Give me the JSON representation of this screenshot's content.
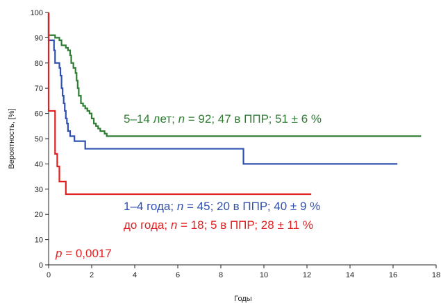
{
  "chart_data": {
    "type": "line",
    "xlabel": "Годы",
    "ylabel": "Вероятность, [%]",
    "xlim": [
      0,
      18
    ],
    "ylim": [
      0,
      100
    ],
    "x_ticks": [
      0,
      2,
      4,
      6,
      8,
      10,
      12,
      14,
      16,
      18
    ],
    "y_ticks": [
      0,
      10,
      20,
      30,
      40,
      50,
      60,
      70,
      80,
      90,
      100
    ],
    "step": true,
    "grid": false,
    "series": [
      {
        "name": "5–14 лет",
        "color": "#2e7d32",
        "points": [
          [
            0,
            91
          ],
          [
            0.3,
            90
          ],
          [
            0.5,
            89
          ],
          [
            0.6,
            87
          ],
          [
            0.8,
            86
          ],
          [
            0.9,
            85
          ],
          [
            1.0,
            83
          ],
          [
            1.05,
            80
          ],
          [
            1.15,
            78
          ],
          [
            1.25,
            76
          ],
          [
            1.3,
            73
          ],
          [
            1.35,
            70
          ],
          [
            1.4,
            67
          ],
          [
            1.5,
            64
          ],
          [
            1.6,
            63
          ],
          [
            1.7,
            62
          ],
          [
            1.8,
            61
          ],
          [
            1.9,
            60
          ],
          [
            2.0,
            58
          ],
          [
            2.1,
            56
          ],
          [
            2.2,
            55
          ],
          [
            2.3,
            54
          ],
          [
            2.4,
            53
          ],
          [
            2.6,
            52
          ],
          [
            2.7,
            51
          ],
          [
            17.3,
            51
          ]
        ]
      },
      {
        "name": "1–4 года",
        "color": "#3050b0",
        "points": [
          [
            0,
            89
          ],
          [
            0.25,
            85
          ],
          [
            0.3,
            80
          ],
          [
            0.5,
            78
          ],
          [
            0.55,
            75
          ],
          [
            0.6,
            70
          ],
          [
            0.65,
            67
          ],
          [
            0.7,
            64
          ],
          [
            0.75,
            61
          ],
          [
            0.8,
            58
          ],
          [
            0.85,
            56
          ],
          [
            0.9,
            53
          ],
          [
            1.0,
            51
          ],
          [
            1.2,
            49
          ],
          [
            1.7,
            46
          ],
          [
            9.05,
            40
          ],
          [
            16.2,
            40
          ]
        ]
      },
      {
        "name": "до года",
        "color": "#e02020",
        "points": [
          [
            0,
            61
          ],
          [
            0.3,
            44
          ],
          [
            0.4,
            39
          ],
          [
            0.5,
            33
          ],
          [
            0.8,
            28
          ],
          [
            12.2,
            28
          ]
        ]
      }
    ],
    "annotations": {
      "green": {
        "lead": "5–14 лет; ",
        "n": "n",
        "rest": " = 92; 47 в ППР; 51 ± 6 %"
      },
      "blue": {
        "lead": "1–4 года; ",
        "n": "n",
        "rest": " = 45; 20 в ППР; 40 ± 9 %"
      },
      "red": {
        "lead": "до года; ",
        "n": "n",
        "rest": " = 18; 5 в ППР; 28 ± 11 %"
      },
      "pvalue": {
        "p": "p",
        "rest": " = 0,0017"
      }
    }
  }
}
